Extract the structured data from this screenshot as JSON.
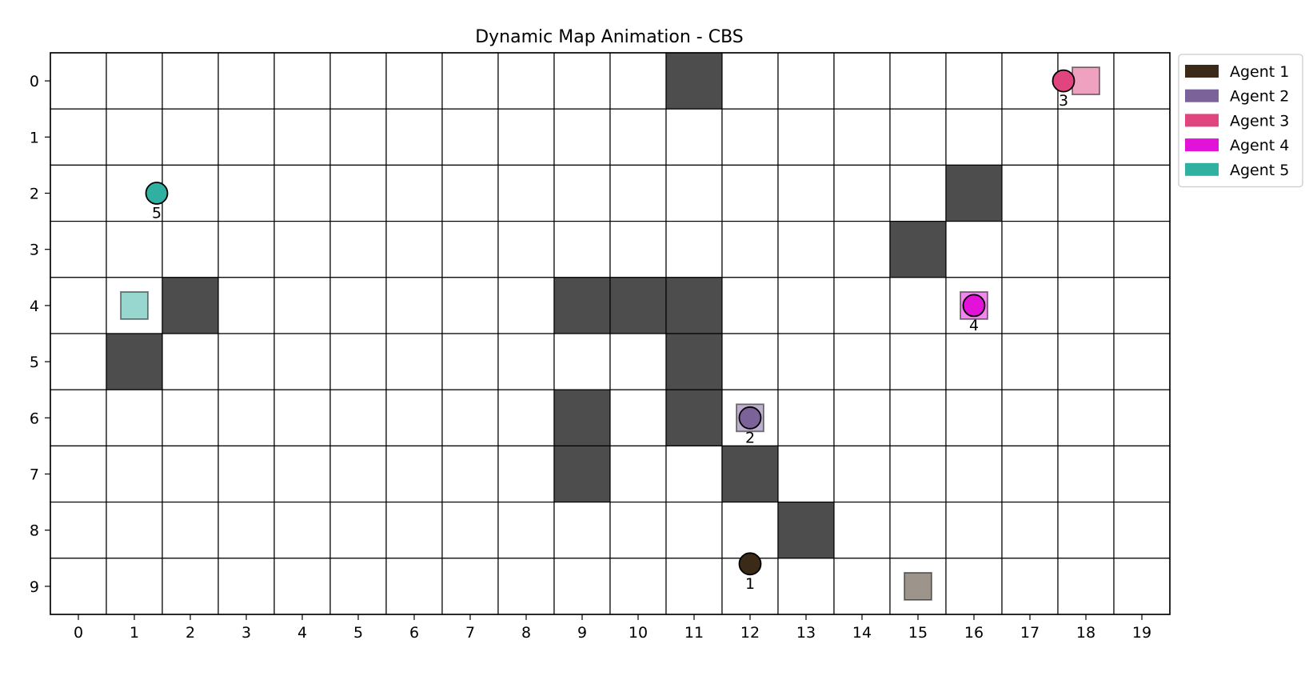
{
  "chart_data": {
    "type": "grid-map",
    "title": "Dynamic Map Animation - CBS",
    "grid": {
      "cols": 20,
      "rows": 10,
      "gridlines": true
    },
    "x_ticks": [
      "0",
      "1",
      "2",
      "3",
      "4",
      "5",
      "6",
      "7",
      "8",
      "9",
      "10",
      "11",
      "12",
      "13",
      "14",
      "15",
      "16",
      "17",
      "18",
      "19"
    ],
    "y_ticks": [
      "0",
      "1",
      "2",
      "3",
      "4",
      "5",
      "6",
      "7",
      "8",
      "9"
    ],
    "obstacle_color": "#4d4d4d",
    "obstacles": [
      {
        "x": 11,
        "y": 0
      },
      {
        "x": 16,
        "y": 2
      },
      {
        "x": 15,
        "y": 3
      },
      {
        "x": 2,
        "y": 4
      },
      {
        "x": 9,
        "y": 4
      },
      {
        "x": 10,
        "y": 4
      },
      {
        "x": 11,
        "y": 4
      },
      {
        "x": 1,
        "y": 5
      },
      {
        "x": 11,
        "y": 5
      },
      {
        "x": 9,
        "y": 6
      },
      {
        "x": 11,
        "y": 6
      },
      {
        "x": 9,
        "y": 7
      },
      {
        "x": 12,
        "y": 7
      },
      {
        "x": 13,
        "y": 8
      }
    ],
    "agents": [
      {
        "name": "Agent 1",
        "label": "1",
        "color": "#3b2a17",
        "position": {
          "x": 12.0,
          "y": 8.6
        },
        "goal": {
          "x": 15,
          "y": 9
        }
      },
      {
        "name": "Agent 2",
        "label": "2",
        "color": "#7b6299",
        "position": {
          "x": 12.0,
          "y": 6.0
        },
        "goal": {
          "x": 12,
          "y": 6
        }
      },
      {
        "name": "Agent 3",
        "label": "3",
        "color": "#e0457f",
        "position": {
          "x": 17.6,
          "y": 0.0
        },
        "goal": {
          "x": 18,
          "y": 0
        }
      },
      {
        "name": "Agent 4",
        "label": "4",
        "color": "#e312d8",
        "position": {
          "x": 16.0,
          "y": 4.0
        },
        "goal": {
          "x": 16,
          "y": 4
        }
      },
      {
        "name": "Agent 5",
        "label": "5",
        "color": "#2fb0a0",
        "position": {
          "x": 1.4,
          "y": 2.0
        },
        "goal": {
          "x": 1,
          "y": 4
        }
      }
    ],
    "legend": {
      "placement": "top-right-outside",
      "entries": [
        "Agent 1",
        "Agent 2",
        "Agent 3",
        "Agent 4",
        "Agent 5"
      ]
    }
  }
}
